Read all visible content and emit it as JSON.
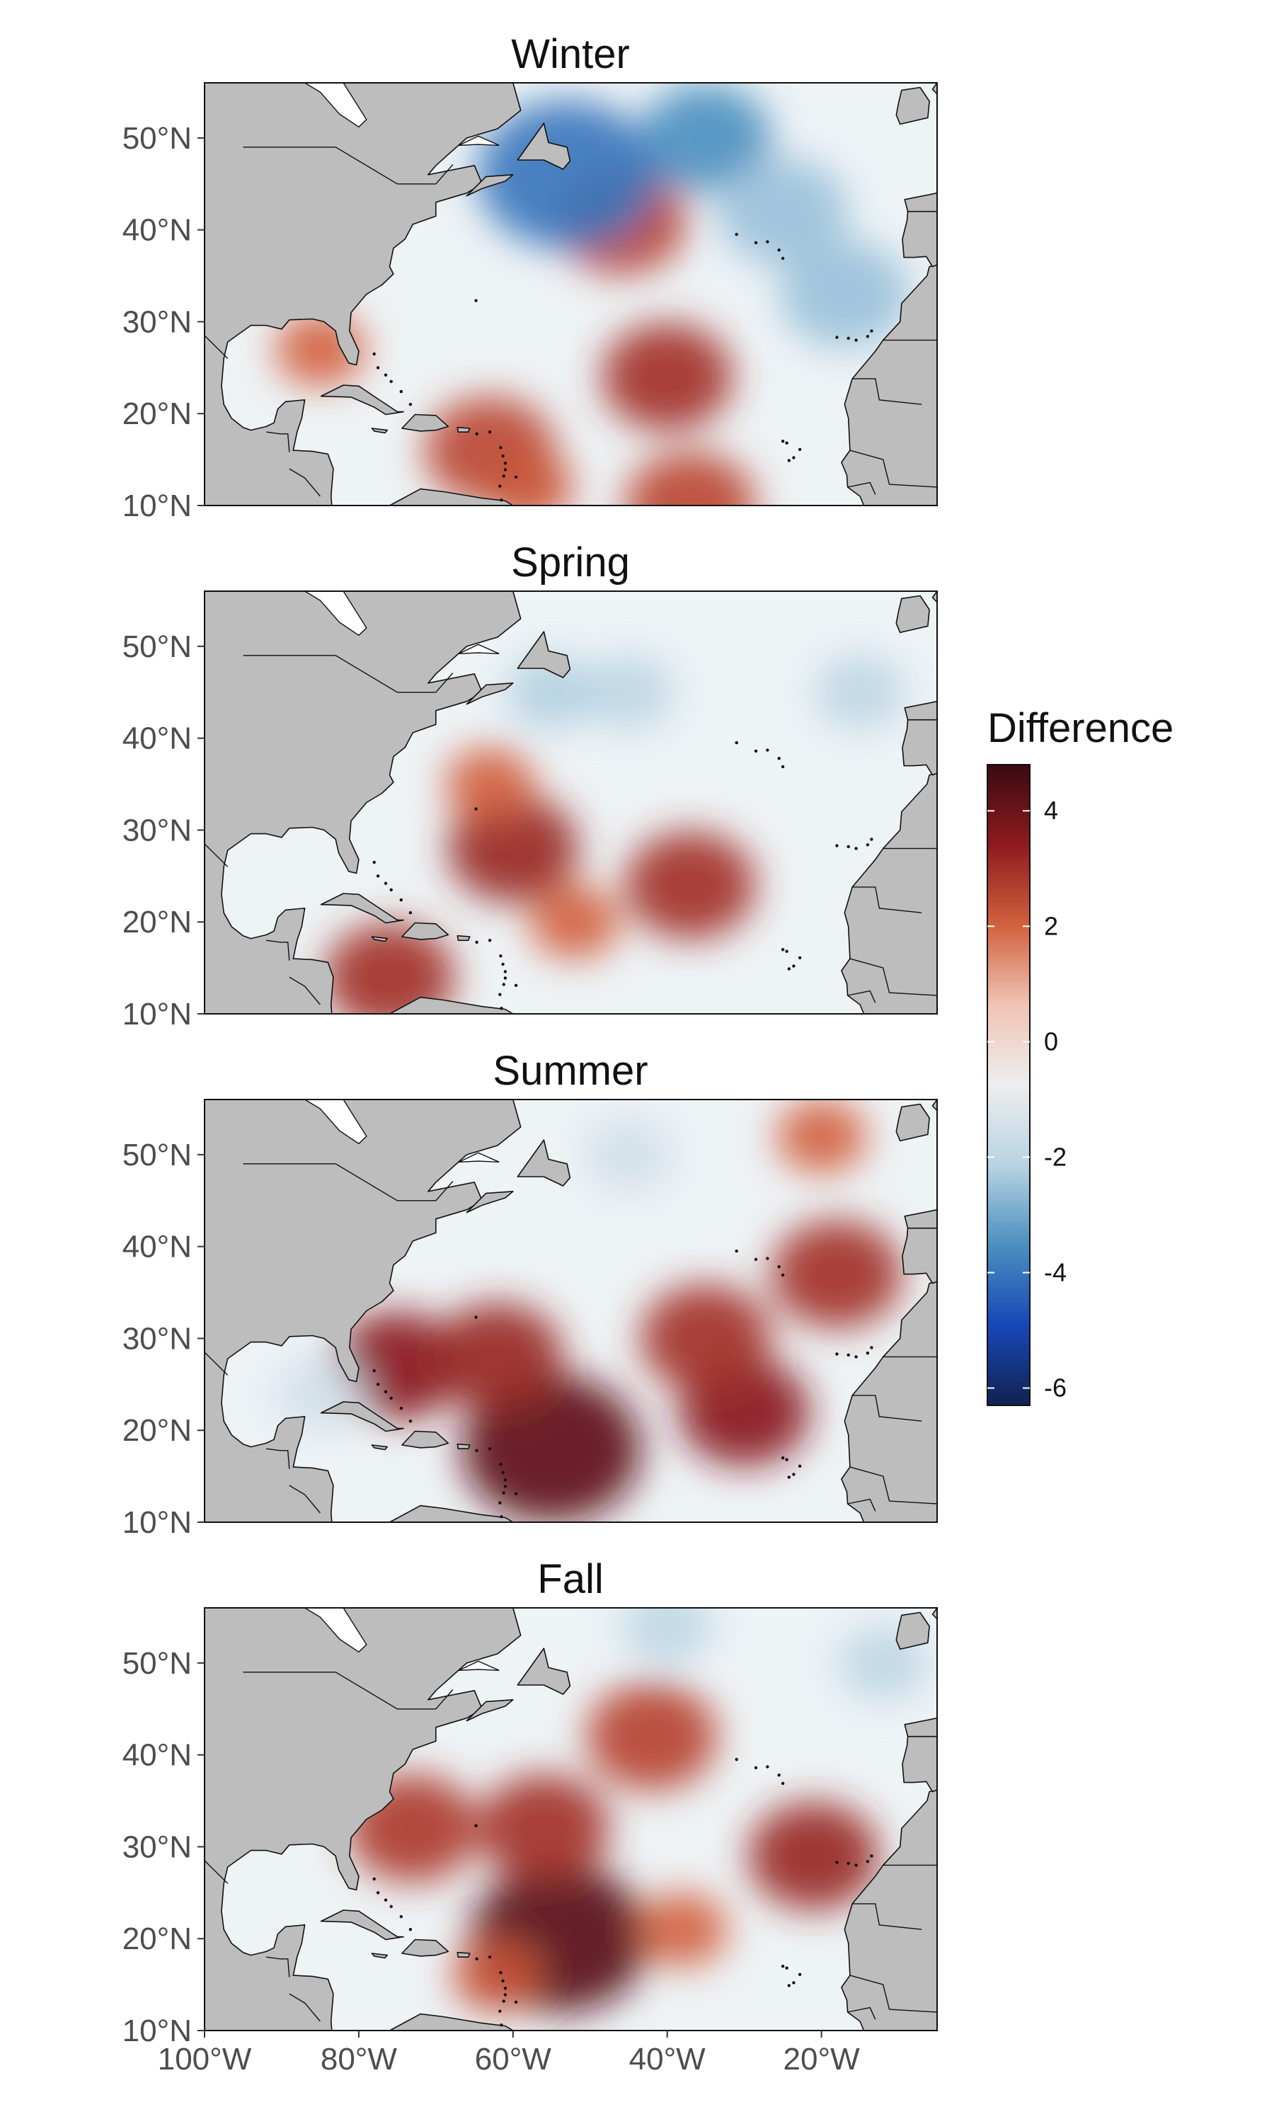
{
  "figure": {
    "panels": [
      {
        "title": "Winter",
        "key": "winter"
      },
      {
        "title": "Spring",
        "key": "spring"
      },
      {
        "title": "Summer",
        "key": "summer"
      },
      {
        "title": "Fall",
        "key": "fall"
      }
    ],
    "y_ticks": [
      "50°N",
      "40°N",
      "30°N",
      "20°N",
      "10°N"
    ],
    "x_ticks": [
      "100°W",
      "80°W",
      "60°W",
      "40°W",
      "20°W"
    ],
    "legend": {
      "title": "Difference",
      "labels": [
        "4",
        "2",
        "0",
        "-2",
        "-4",
        "-6"
      ]
    },
    "colors": {
      "land": "#bdbdbd",
      "ocean_neutral": "#eef3f6",
      "warm": "#b2241f",
      "cool": "#2f78b5",
      "gradient": [
        "#3b0a12",
        "#8e1b1f",
        "#d2603e",
        "#f0c4b4",
        "#eeeeee",
        "#b8d3e3",
        "#4b8fbf",
        "#1747b8",
        "#11224f"
      ]
    }
  },
  "chart_data": {
    "type": "heatmap",
    "title": "",
    "facets": [
      "Winter",
      "Spring",
      "Summer",
      "Fall"
    ],
    "x_axis": {
      "ticks": [
        "100°W",
        "80°W",
        "60°W",
        "40°W",
        "20°W"
      ],
      "range": [
        -100,
        -5
      ]
    },
    "y_axis": {
      "ticks": [
        "50°N",
        "40°N",
        "30°N",
        "20°N",
        "10°N"
      ],
      "range": [
        10,
        56
      ]
    },
    "color_scale": {
      "title": "Difference",
      "min": -6.3,
      "max": 4.8,
      "ticks": [
        4,
        2,
        0,
        -2,
        -4,
        -6
      ]
    },
    "hotspots": {
      "winter": [
        {
          "lon": -40,
          "lat": 24,
          "value": 3.0
        },
        {
          "lon": -46,
          "lat": 41,
          "value": 2.6
        },
        {
          "lon": -63,
          "lat": 16,
          "value": 2.5
        },
        {
          "lon": -58,
          "lat": 12,
          "value": 2.2
        },
        {
          "lon": -85,
          "lat": 27,
          "value": 2.0
        },
        {
          "lon": -37,
          "lat": 10,
          "value": 2.5
        },
        {
          "lon": -35,
          "lat": 50,
          "value": -3.5
        },
        {
          "lon": -53,
          "lat": 46,
          "value": -4.0
        },
        {
          "lon": -25,
          "lat": 42,
          "value": -2.5
        },
        {
          "lon": -17,
          "lat": 33,
          "value": -2.5
        }
      ],
      "spring": [
        {
          "lon": -37,
          "lat": 24,
          "value": 3.0
        },
        {
          "lon": -60,
          "lat": 28,
          "value": 3.2
        },
        {
          "lon": -76,
          "lat": 14,
          "value": 3.0
        },
        {
          "lon": -52,
          "lat": 20,
          "value": 2.0
        },
        {
          "lon": -63,
          "lat": 35,
          "value": 2.0
        },
        {
          "lon": -45,
          "lat": 45,
          "value": -2.0
        },
        {
          "lon": -15,
          "lat": 45,
          "value": -2.0
        },
        {
          "lon": -55,
          "lat": 45,
          "value": -2.2
        }
      ],
      "summer": [
        {
          "lon": -55,
          "lat": 18,
          "value": 4.2
        },
        {
          "lon": -75,
          "lat": 27,
          "value": 3.5
        },
        {
          "lon": -30,
          "lat": 22,
          "value": 3.5
        },
        {
          "lon": -18,
          "lat": 37,
          "value": 3.0
        },
        {
          "lon": -62,
          "lat": 28,
          "value": 3.2
        },
        {
          "lon": -35,
          "lat": 30,
          "value": 3.0
        },
        {
          "lon": -20,
          "lat": 52,
          "value": 2.0
        },
        {
          "lon": -45,
          "lat": 50,
          "value": -1.5
        },
        {
          "lon": -85,
          "lat": 24,
          "value": -1.5
        }
      ],
      "fall": [
        {
          "lon": -54,
          "lat": 20,
          "value": 4.3
        },
        {
          "lon": -56,
          "lat": 32,
          "value": 3.0
        },
        {
          "lon": -42,
          "lat": 42,
          "value": 2.6
        },
        {
          "lon": -73,
          "lat": 32,
          "value": 2.8
        },
        {
          "lon": -21,
          "lat": 29,
          "value": 3.2
        },
        {
          "lon": -38,
          "lat": 21,
          "value": 2.0
        },
        {
          "lon": -62,
          "lat": 16,
          "value": 2.3
        },
        {
          "lon": -40,
          "lat": 54,
          "value": -2.0
        },
        {
          "lon": -12,
          "lat": 50,
          "value": -2.0
        }
      ]
    }
  }
}
